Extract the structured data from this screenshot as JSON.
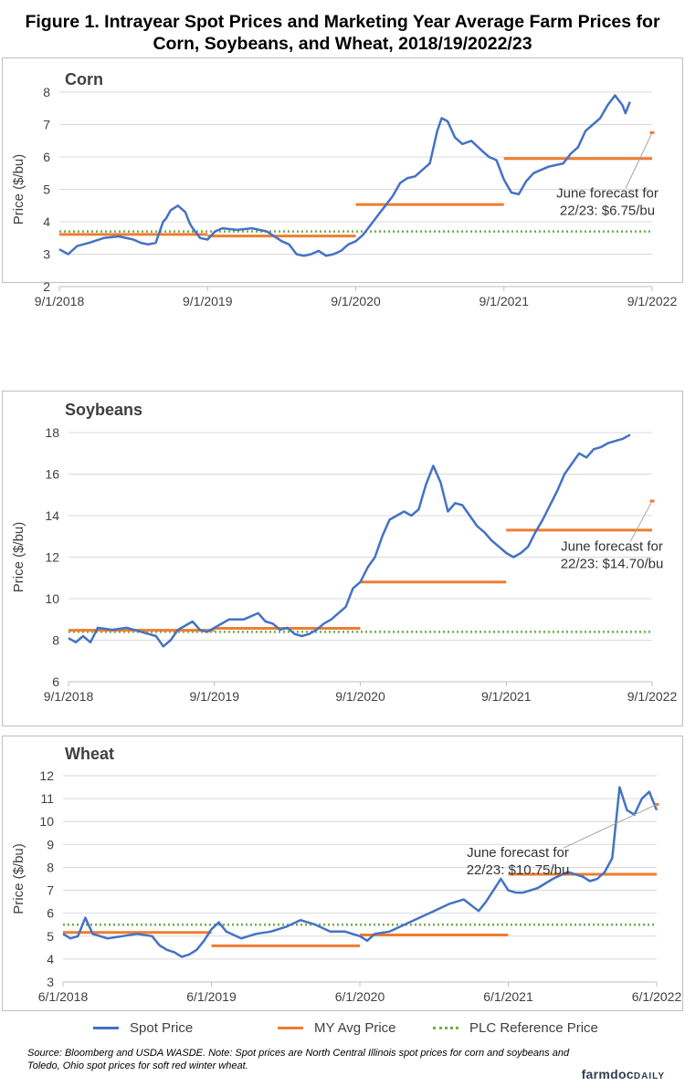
{
  "title": "Figure 1. Intrayear Spot Prices and Marketing Year Average Farm Prices for Corn, Soybeans, and Wheat, 2018/19/2022/23",
  "legend": {
    "spot": "Spot Price",
    "my": "MY Avg Price",
    "plc": "PLC Reference Price"
  },
  "source": "Source: Bloomberg and USDA WASDE. Note: Spot prices are North Central Illinois spot prices for corn and soybeans and Toledo, Ohio spot prices for soft red winter wheat.",
  "brand": {
    "main": "farmdoc",
    "small": "DAILY"
  },
  "colors": {
    "spot": "#4472c4",
    "my": "#ed7d31",
    "plc": "#70ad47",
    "grid": "#d9d9d9"
  },
  "chart_data": [
    {
      "type": "line",
      "title": "Corn",
      "ylabel": "Price ($/bu)",
      "ylim": [
        2,
        8
      ],
      "yticks": [
        2,
        3,
        4,
        5,
        6,
        7,
        8
      ],
      "xlim": [
        0,
        4
      ],
      "xticks": [
        "9/1/2018",
        "9/1/2019",
        "9/1/2020",
        "9/1/2021",
        "9/1/2022"
      ],
      "grid": true,
      "annotation": {
        "text": [
          "June forecast for",
          "22/23: $6.75/bu"
        ],
        "value": 6.75
      },
      "series": [
        {
          "name": "Spot Price",
          "x": [
            0,
            0.06,
            0.12,
            0.2,
            0.3,
            0.4,
            0.5,
            0.55,
            0.6,
            0.65,
            0.7,
            0.72,
            0.75,
            0.8,
            0.85,
            0.88,
            0.9,
            0.95,
            1.0,
            1.05,
            1.1,
            1.2,
            1.3,
            1.4,
            1.5,
            1.55,
            1.6,
            1.65,
            1.7,
            1.75,
            1.8,
            1.85,
            1.9,
            1.95,
            2.0,
            2.05,
            2.1,
            2.15,
            2.2,
            2.25,
            2.3,
            2.35,
            2.4,
            2.45,
            2.5,
            2.55,
            2.58,
            2.62,
            2.67,
            2.72,
            2.78,
            2.85,
            2.9,
            2.95,
            3.0,
            3.05,
            3.1,
            3.15,
            3.2,
            3.3,
            3.4,
            3.45,
            3.5,
            3.55,
            3.6,
            3.65,
            3.7,
            3.75,
            3.8,
            3.82,
            3.85
          ],
          "values": [
            3.15,
            3.0,
            3.25,
            3.35,
            3.5,
            3.55,
            3.45,
            3.35,
            3.3,
            3.35,
            4.0,
            4.1,
            4.35,
            4.5,
            4.3,
            3.95,
            3.8,
            3.5,
            3.45,
            3.7,
            3.8,
            3.75,
            3.8,
            3.7,
            3.4,
            3.3,
            3.0,
            2.95,
            3.0,
            3.1,
            2.95,
            3.0,
            3.1,
            3.3,
            3.4,
            3.6,
            3.9,
            4.2,
            4.5,
            4.8,
            5.2,
            5.35,
            5.4,
            5.6,
            5.8,
            6.8,
            7.2,
            7.1,
            6.6,
            6.4,
            6.5,
            6.2,
            6.0,
            5.9,
            5.3,
            4.9,
            4.85,
            5.25,
            5.5,
            5.7,
            5.8,
            6.1,
            6.3,
            6.8,
            7.0,
            7.2,
            7.6,
            7.9,
            7.6,
            7.35,
            7.7
          ]
        },
        {
          "name": "MY Avg Price",
          "segments": [
            [
              0,
              1,
              3.61
            ],
            [
              1,
              2,
              3.56
            ],
            [
              2,
              3,
              4.53
            ],
            [
              3,
              4,
              5.95
            ]
          ],
          "forecast": [
            4,
            6.75
          ]
        },
        {
          "name": "PLC Reference Price",
          "value": 3.7
        }
      ]
    },
    {
      "type": "line",
      "title": "Soybeans",
      "ylabel": "Price ($/bu)",
      "ylim": [
        6,
        18
      ],
      "yticks": [
        6,
        8,
        10,
        12,
        14,
        16,
        18
      ],
      "xlim": [
        0,
        4
      ],
      "xticks": [
        "9/1/2018",
        "9/1/2019",
        "9/1/2020",
        "9/1/2021",
        "9/1/2022"
      ],
      "grid": true,
      "annotation": {
        "text": [
          "June forecast for",
          "22/23: $14.70/bu"
        ],
        "value": 14.7
      },
      "series": [
        {
          "name": "Spot Price",
          "x": [
            0,
            0.05,
            0.1,
            0.15,
            0.2,
            0.3,
            0.4,
            0.5,
            0.6,
            0.65,
            0.7,
            0.75,
            0.8,
            0.85,
            0.9,
            0.95,
            1.0,
            1.1,
            1.2,
            1.3,
            1.35,
            1.4,
            1.45,
            1.5,
            1.55,
            1.6,
            1.65,
            1.7,
            1.75,
            1.8,
            1.85,
            1.9,
            1.95,
            2.0,
            2.05,
            2.1,
            2.15,
            2.2,
            2.25,
            2.3,
            2.35,
            2.4,
            2.45,
            2.5,
            2.55,
            2.6,
            2.65,
            2.7,
            2.75,
            2.8,
            2.85,
            2.9,
            2.95,
            3.0,
            3.05,
            3.1,
            3.15,
            3.2,
            3.25,
            3.3,
            3.35,
            3.4,
            3.45,
            3.5,
            3.55,
            3.6,
            3.65,
            3.7,
            3.75,
            3.8,
            3.85
          ],
          "values": [
            8.1,
            7.9,
            8.2,
            7.9,
            8.6,
            8.5,
            8.6,
            8.4,
            8.2,
            7.7,
            8.0,
            8.5,
            8.7,
            8.9,
            8.5,
            8.4,
            8.6,
            9.0,
            9.0,
            9.3,
            8.9,
            8.8,
            8.5,
            8.6,
            8.3,
            8.2,
            8.3,
            8.5,
            8.8,
            9.0,
            9.3,
            9.6,
            10.5,
            10.8,
            11.5,
            12.0,
            13.0,
            13.8,
            14.0,
            14.2,
            14.0,
            14.3,
            15.5,
            16.4,
            15.6,
            14.2,
            14.6,
            14.5,
            14.0,
            13.5,
            13.2,
            12.8,
            12.5,
            12.2,
            12.0,
            12.2,
            12.5,
            13.2,
            13.8,
            14.5,
            15.2,
            16.0,
            16.5,
            17.0,
            16.8,
            17.2,
            17.3,
            17.5,
            17.6,
            17.7,
            17.9
          ]
        },
        {
          "name": "MY Avg Price",
          "segments": [
            [
              0,
              1,
              8.48
            ],
            [
              1,
              2,
              8.57
            ],
            [
              2,
              3,
              10.8
            ],
            [
              3,
              4,
              13.3
            ]
          ],
          "forecast": [
            4,
            14.7
          ]
        },
        {
          "name": "PLC Reference Price",
          "value": 8.4
        }
      ]
    },
    {
      "type": "line",
      "title": "Wheat",
      "ylabel": "Price ($/bu)",
      "ylim": [
        3,
        12
      ],
      "yticks": [
        3,
        4,
        5,
        6,
        7,
        8,
        9,
        10,
        11,
        12
      ],
      "xlim": [
        0,
        4
      ],
      "xticks": [
        "6/1/2018",
        "6/1/2019",
        "6/1/2020",
        "6/1/2021",
        "6/1/2022"
      ],
      "grid": true,
      "annotation": {
        "text": [
          "June forecast for",
          "22/23: $10.75/bu"
        ],
        "value": 10.75
      },
      "series": [
        {
          "name": "Spot Price",
          "x": [
            0,
            0.05,
            0.1,
            0.15,
            0.2,
            0.25,
            0.3,
            0.4,
            0.5,
            0.6,
            0.65,
            0.7,
            0.75,
            0.8,
            0.85,
            0.9,
            0.95,
            1.0,
            1.05,
            1.1,
            1.2,
            1.3,
            1.4,
            1.5,
            1.6,
            1.7,
            1.8,
            1.9,
            2.0,
            2.05,
            2.1,
            2.2,
            2.3,
            2.4,
            2.5,
            2.6,
            2.7,
            2.8,
            2.85,
            2.9,
            2.95,
            3.0,
            3.05,
            3.1,
            3.15,
            3.2,
            3.3,
            3.4,
            3.5,
            3.55,
            3.6,
            3.65,
            3.7,
            3.75,
            3.8,
            3.85,
            3.9,
            3.95,
            4.0
          ],
          "values": [
            5.1,
            4.9,
            5.0,
            5.8,
            5.1,
            5.0,
            4.9,
            5.0,
            5.1,
            5.0,
            4.6,
            4.4,
            4.3,
            4.1,
            4.2,
            4.4,
            4.8,
            5.3,
            5.6,
            5.2,
            4.9,
            5.1,
            5.2,
            5.4,
            5.7,
            5.5,
            5.2,
            5.2,
            5.0,
            4.8,
            5.1,
            5.2,
            5.5,
            5.8,
            6.1,
            6.4,
            6.6,
            6.1,
            6.5,
            7.0,
            7.5,
            7.0,
            6.9,
            6.9,
            7.0,
            7.1,
            7.5,
            7.8,
            7.6,
            7.4,
            7.5,
            7.8,
            8.4,
            11.5,
            10.5,
            10.3,
            11.0,
            11.3,
            10.5
          ]
        },
        {
          "name": "MY Avg Price",
          "segments": [
            [
              0,
              1,
              5.16
            ],
            [
              1,
              2,
              4.58
            ],
            [
              2,
              3,
              5.05
            ],
            [
              3,
              4,
              7.7
            ]
          ],
          "forecast": [
            4,
            10.75
          ]
        },
        {
          "name": "PLC Reference Price",
          "value": 5.5
        }
      ]
    }
  ]
}
